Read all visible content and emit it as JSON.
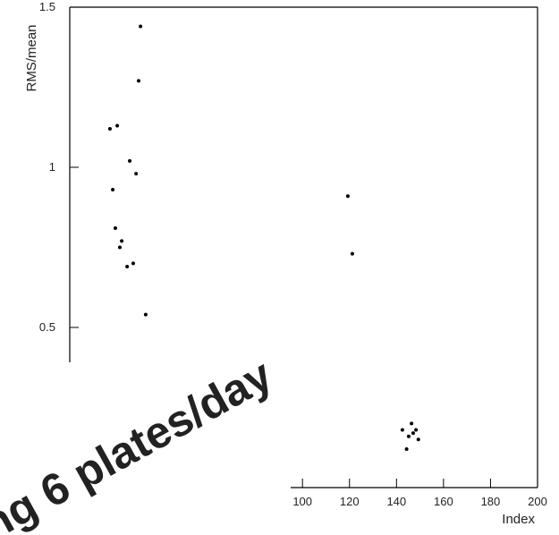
{
  "chart_data": {
    "type": "scatter",
    "ylabel": "RMS/mean",
    "xlabel": "Index",
    "annotation": "ng 6 plates/day",
    "x": [
      31.1,
      30.3,
      21.2,
      18.1,
      26.5,
      29.2,
      19.3,
      20.4,
      23.1,
      22.3,
      28.0,
      25.4,
      33.3,
      119.3,
      121.2,
      146.4,
      148.3,
      147.1,
      142.5,
      145.2,
      149.3,
      144.3
    ],
    "values": [
      1.44,
      1.27,
      1.13,
      1.12,
      1.02,
      0.98,
      0.93,
      0.81,
      0.77,
      0.75,
      0.7,
      0.69,
      0.54,
      0.91,
      0.73,
      0.2,
      0.18,
      0.17,
      0.18,
      0.16,
      0.15,
      0.12
    ],
    "color": "#000000",
    "annotation_color": "#ee0000",
    "xlim": [
      1,
      200
    ],
    "xticks": [
      100,
      120,
      140,
      160,
      180,
      200
    ],
    "ylim": [
      0,
      1.5
    ],
    "yticks": [
      0.5,
      1,
      1.5
    ]
  }
}
